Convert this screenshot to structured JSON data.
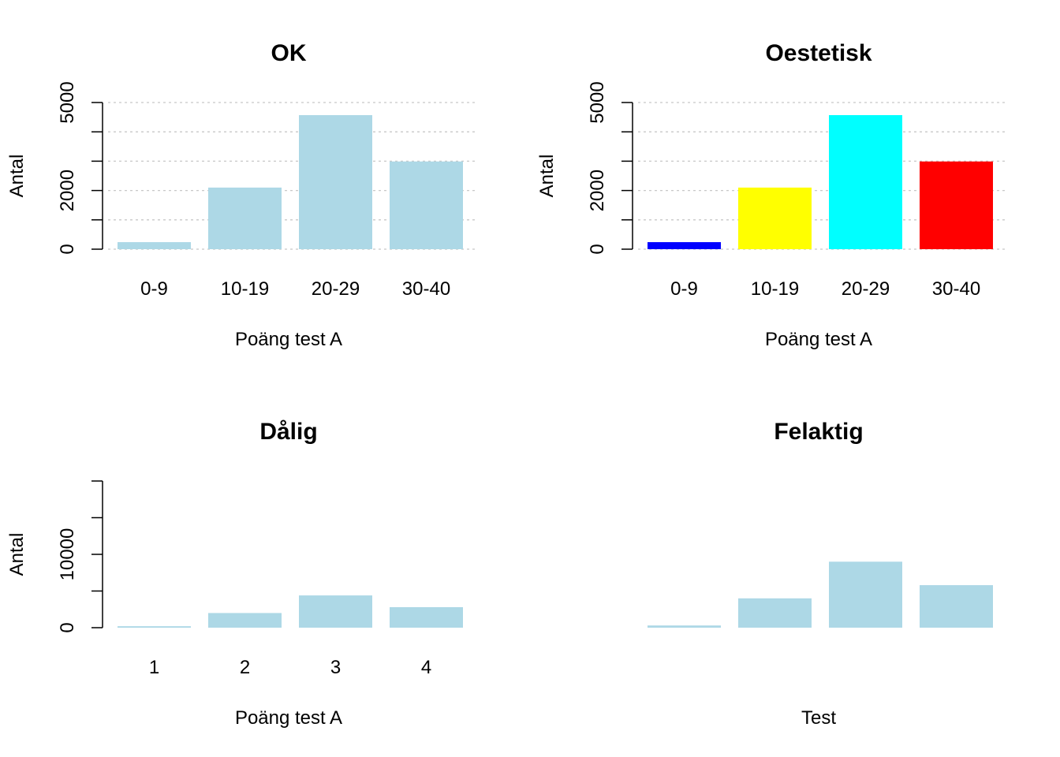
{
  "chart_data": [
    {
      "type": "bar",
      "title": "OK",
      "xlabel": "Poäng test A",
      "ylabel": "Antal",
      "categories": [
        "0-9",
        "10-19",
        "20-29",
        "30-40"
      ],
      "values": [
        240,
        2100,
        4570,
        2990
      ],
      "ylim": [
        0,
        5000
      ],
      "y_ticks": [
        0,
        1000,
        2000,
        3000,
        4000,
        5000
      ],
      "y_tick_labels": [
        "0",
        "",
        "2000",
        "",
        "",
        "5000"
      ],
      "grid": true,
      "colors": [
        "#add8e6",
        "#add8e6",
        "#add8e6",
        "#add8e6"
      ]
    },
    {
      "type": "bar",
      "title": "Oestetisk",
      "xlabel": "Poäng test A",
      "ylabel": "Antal",
      "categories": [
        "0-9",
        "10-19",
        "20-29",
        "30-40"
      ],
      "values": [
        240,
        2100,
        4570,
        2990
      ],
      "ylim": [
        0,
        5000
      ],
      "y_ticks": [
        0,
        1000,
        2000,
        3000,
        4000,
        5000
      ],
      "y_tick_labels": [
        "0",
        "",
        "2000",
        "",
        "",
        "5000"
      ],
      "grid": true,
      "colors": [
        "#0000ff",
        "#ffff00",
        "#00ffff",
        "#ff0000"
      ]
    },
    {
      "type": "bar",
      "title": "Dålig",
      "xlabel": "Poäng test A",
      "ylabel": "Antal",
      "categories": [
        "1",
        "2",
        "3",
        "4"
      ],
      "values": [
        200,
        2000,
        4400,
        2800
      ],
      "ylim": [
        0,
        20000
      ],
      "y_ticks": [
        0,
        5000,
        10000,
        15000,
        20000
      ],
      "y_tick_labels": [
        "0",
        "",
        "10000",
        "",
        ""
      ],
      "grid": false,
      "colors": [
        "#add8e6",
        "#add8e6",
        "#add8e6",
        "#add8e6"
      ]
    },
    {
      "type": "bar",
      "title": "Felaktig",
      "xlabel": "Test",
      "ylabel": "",
      "categories": [
        "",
        "",
        "",
        ""
      ],
      "values": [
        0.3,
        4.0,
        9.0,
        5.8
      ],
      "ylim": [
        0,
        20
      ],
      "y_ticks": [],
      "y_tick_labels": [],
      "grid": false,
      "colors": [
        "#add8e6",
        "#add8e6",
        "#add8e6",
        "#add8e6"
      ]
    }
  ]
}
